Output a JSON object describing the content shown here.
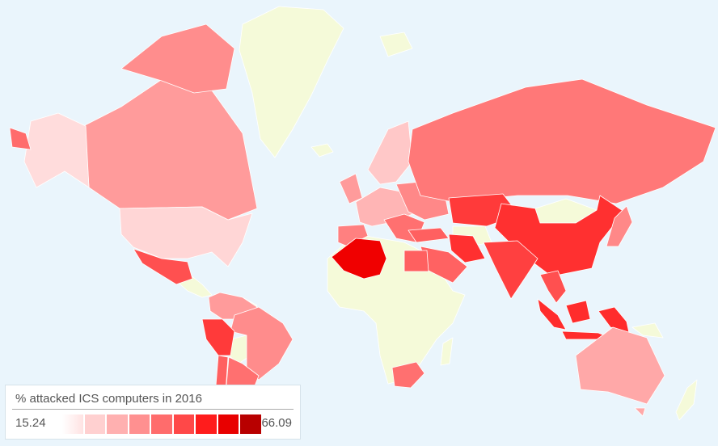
{
  "legend": {
    "title": "% attacked ICS computers in 2016",
    "min": "15.24",
    "max": "66.09",
    "scale_colors": [
      "#fff0f0",
      "#ffd0d0",
      "#ffb0b0",
      "#ff9090",
      "#ff6c6c",
      "#ff4848",
      "#ff1c1c",
      "#e80000",
      "#b80000"
    ]
  },
  "colors": {
    "ocean": "#eaf5fc",
    "no_data_land": "#f5fad9",
    "low": "#ffdcdc",
    "light": "#ffc8c8",
    "medium_light": "#ff9b9b",
    "medium": "#ff7878",
    "medium_high": "#ff4a4a",
    "high": "#ff3030",
    "very_high": "#f00000"
  }
}
